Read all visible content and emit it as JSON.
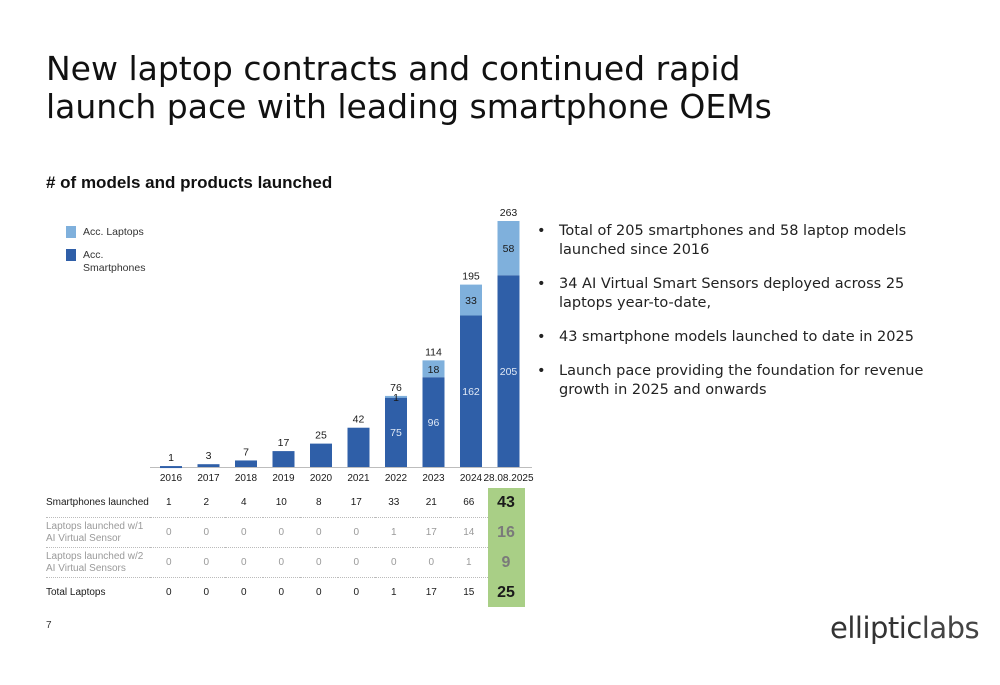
{
  "slide": {
    "title_lines": [
      "New laptop contracts and continued rapid",
      "launch pace with leading smartphone OEMs"
    ],
    "subtitle": "# of models and products launched",
    "page_number": "7",
    "logo": {
      "part1": "elliptic",
      "part2": "labs"
    }
  },
  "legend": [
    {
      "label": "Acc. Laptops",
      "color": "#7fb0dc"
    },
    {
      "label": "Acc. Smartphones",
      "color": "#2f5fa8"
    }
  ],
  "bullets": [
    "Total of 205 smartphones and 58 laptop models launched since 2016",
    "34 AI Virtual Smart Sensors deployed across 25 laptops year-to-date,",
    "43 smartphone models launched to date in 2025",
    "Launch pace providing the foundation for revenue growth in 2025 and onwards"
  ],
  "chart_data": {
    "type": "bar",
    "stacked": true,
    "categories": [
      "2016",
      "2017",
      "2018",
      "2019",
      "2020",
      "2021",
      "2022",
      "2023",
      "2024",
      "28.08.2025"
    ],
    "series": [
      {
        "name": "Acc. Smartphones",
        "color": "#2f5fa8",
        "values": [
          1,
          3,
          7,
          17,
          25,
          42,
          75,
          96,
          162,
          205
        ],
        "labels": [
          "",
          "",
          "",
          "",
          "",
          "",
          "75",
          "96",
          "162",
          "205"
        ]
      },
      {
        "name": "Acc. Laptops",
        "color": "#7fb0dc",
        "values": [
          0,
          0,
          0,
          0,
          0,
          0,
          1,
          18,
          33,
          58
        ],
        "labels": [
          "",
          "",
          "",
          "",
          "",
          "",
          "1",
          "18",
          "33",
          "58"
        ]
      }
    ],
    "totals": [
      1,
      3,
      7,
      17,
      25,
      42,
      76,
      114,
      195,
      263
    ],
    "ylim": [
      0,
      263
    ]
  },
  "table": {
    "rows": [
      {
        "label": "Smartphones launched",
        "values": [
          "1",
          "2",
          "4",
          "10",
          "8",
          "17",
          "33",
          "21",
          "66"
        ],
        "highlight": "43",
        "style": "normal"
      },
      {
        "label": "Laptops launched w/1 AI Virtual Sensor",
        "values": [
          "0",
          "0",
          "0",
          "0",
          "0",
          "0",
          "1",
          "17",
          "14"
        ],
        "highlight": "16",
        "style": "gray"
      },
      {
        "label": "Laptops launched w/2 AI Virtual Sensors",
        "values": [
          "0",
          "0",
          "0",
          "0",
          "0",
          "0",
          "0",
          "0",
          "1"
        ],
        "highlight": "9",
        "style": "gray"
      },
      {
        "label": "Total Laptops",
        "values": [
          "0",
          "0",
          "0",
          "0",
          "0",
          "0",
          "1",
          "17",
          "15"
        ],
        "highlight": "25",
        "style": "normal"
      }
    ]
  }
}
